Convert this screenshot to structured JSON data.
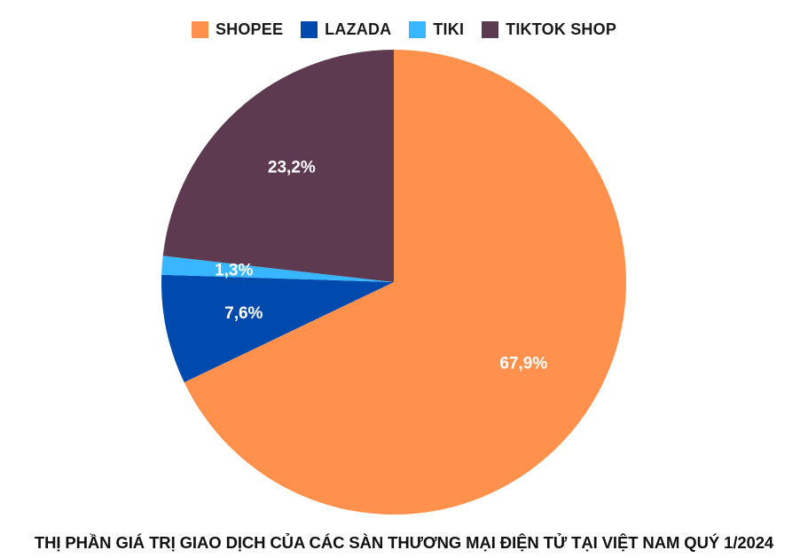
{
  "chart_data": {
    "type": "pie",
    "title": "THỊ PHẦN GIÁ TRỊ GIAO DỊCH CỦA CÁC SÀN THƯƠNG MẠI ĐIỆN TỬ TẠI VIỆT NAM QUÝ 1/2024",
    "legend_position": "top",
    "categories": [
      "SHOPEE",
      "LAZADA",
      "TIKI",
      "TIKTOK SHOP"
    ],
    "values": [
      67.9,
      7.6,
      1.3,
      23.2
    ],
    "labels": [
      "67,9%",
      "7,6%",
      "1,3%",
      "23,2%"
    ],
    "colors": [
      "#FF914D",
      "#004AAD",
      "#38B6FF",
      "#5E3A50"
    ],
    "start_angle_deg": 0,
    "direction": "clockwise"
  }
}
